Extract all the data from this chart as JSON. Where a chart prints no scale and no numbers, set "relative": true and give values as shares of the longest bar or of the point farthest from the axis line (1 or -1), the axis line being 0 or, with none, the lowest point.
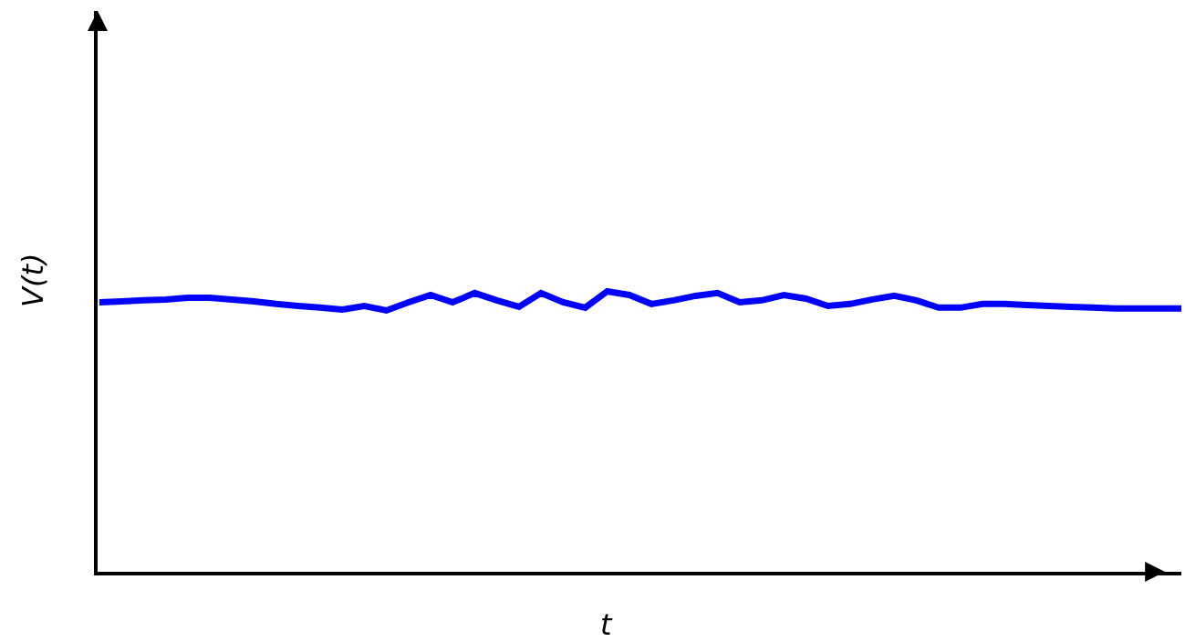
{
  "chart_data": {
    "type": "line",
    "relative": true,
    "xlabel": "t",
    "ylabel": "V(t)",
    "marker": "none",
    "line_style": "solid",
    "categories": [
      null,
      null,
      null,
      null,
      null,
      null,
      null,
      null,
      null,
      null,
      null,
      null,
      null,
      null,
      null,
      null,
      null,
      null,
      null,
      null,
      null,
      null,
      null,
      null,
      null,
      null,
      null,
      null,
      null,
      null,
      null,
      null,
      null,
      null,
      null,
      null,
      null,
      null,
      null,
      null,
      null,
      null,
      null,
      null,
      null,
      null,
      null,
      null,
      null,
      null
    ],
    "series": [
      {
        "color": "#0000ff",
        "values": [
          0.961,
          0.964,
          0.968,
          0.971,
          0.977,
          0.977,
          0.971,
          0.964,
          0.955,
          0.948,
          0.942,
          0.935,
          0.948,
          0.932,
          0.961,
          0.987,
          0.961,
          0.994,
          0.968,
          0.945,
          0.994,
          0.961,
          0.942,
          1,
          0.987,
          0.955,
          0.968,
          0.984,
          0.994,
          0.961,
          0.968,
          0.987,
          0.974,
          0.948,
          0.955,
          0.971,
          0.984,
          0.968,
          0.942,
          0.942,
          0.955,
          0.955,
          0.951,
          0.948,
          0.945,
          0.942,
          0.939,
          0.939,
          0.939,
          0.939
        ]
      }
    ]
  }
}
